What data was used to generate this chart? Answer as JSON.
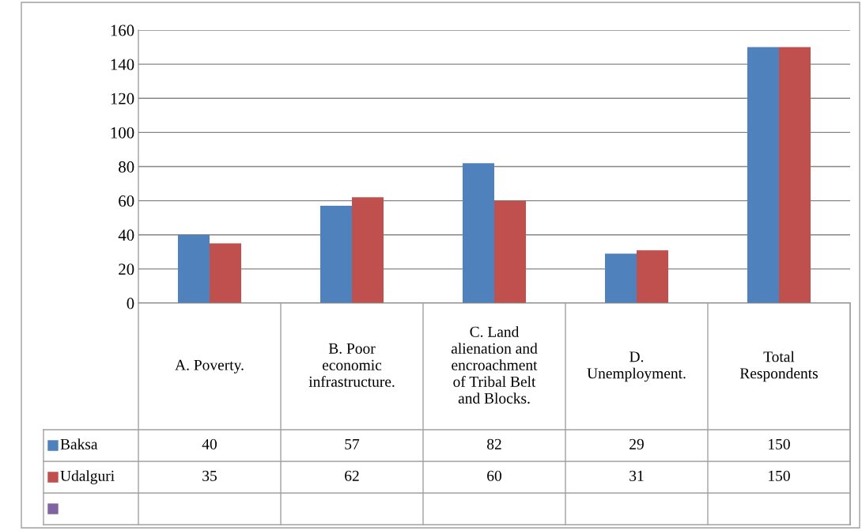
{
  "chart_data": {
    "type": "bar",
    "categories": [
      "A. Poverty.",
      "B. Poor economic infrastructure.",
      "C. Land alienation and encroachment of Tribal Belt and Blocks.",
      "D. Unemployment.",
      "Total Respondents"
    ],
    "series": [
      {
        "name": "Baksa",
        "color": "#4f81bd",
        "values": [
          40,
          57,
          82,
          29,
          150
        ]
      },
      {
        "name": "Udalguri",
        "color": "#c0504d",
        "values": [
          35,
          62,
          60,
          31,
          150
        ]
      },
      {
        "color": "#8064a2",
        "values": [
          null,
          null,
          null,
          null,
          null
        ]
      }
    ],
    "ylim": [
      0,
      160
    ],
    "yticks": [
      0,
      20,
      40,
      60,
      80,
      100,
      120,
      140,
      160
    ],
    "grid": "y",
    "data_labels": true,
    "legend": "bottom left"
  }
}
